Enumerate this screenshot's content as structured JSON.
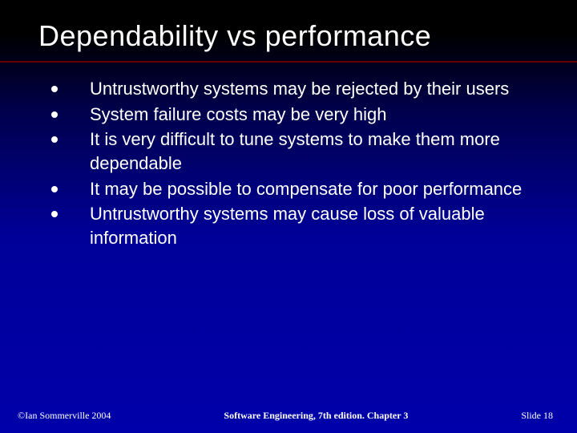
{
  "title": "Dependability vs performance",
  "bullets": [
    "Untrustworthy systems may be rejected by their users",
    "System failure costs may be very high",
    "It is very difficult to tune systems to make them more dependable",
    "It may be possible to compensate for poor performance",
    "Untrustworthy systems may cause loss of valuable information"
  ],
  "footer": {
    "left": "©Ian Sommerville 2004",
    "center": "Software Engineering, 7th edition. Chapter 3",
    "right": "Slide 18"
  },
  "style": {
    "background_gradient": [
      "#000000",
      "#00004a",
      "#000099",
      "#0000aa"
    ],
    "divider_color": "#660000",
    "title_fontsize": 36,
    "body_fontsize": 22,
    "footer_fontsize": 12,
    "text_color": "#ffffff",
    "bullet_marker": "disc"
  }
}
